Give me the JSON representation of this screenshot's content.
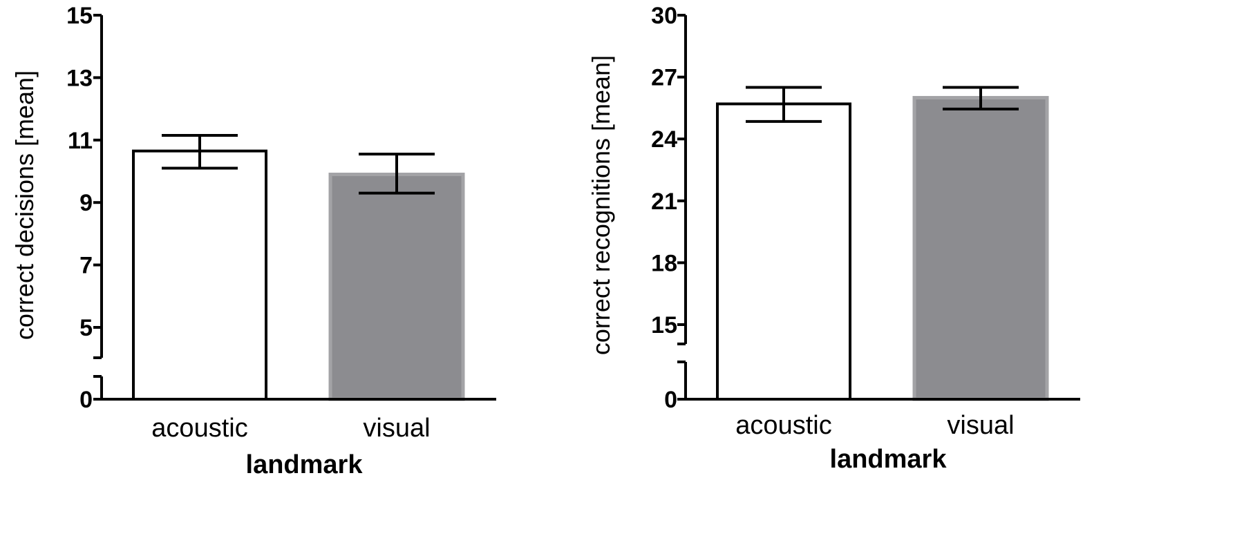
{
  "chart_data": [
    {
      "type": "bar",
      "xlabel": "landmark",
      "ylabel": "correct decisions [mean]",
      "categories": [
        "acoustic",
        "visual"
      ],
      "values": [
        10.65,
        9.9
      ],
      "error_upper": [
        11.15,
        10.55
      ],
      "error_lower": [
        10.1,
        9.3
      ],
      "bar_colors": [
        "#ffffff",
        "#8c8c90"
      ],
      "y_ticks": [
        0,
        5,
        7,
        9,
        11,
        13,
        15
      ],
      "tick_labels": [
        "0",
        "5",
        "7",
        "9",
        "11",
        "13",
        "15"
      ],
      "axis_break": true,
      "ylim": [
        0,
        15
      ],
      "grid": false
    },
    {
      "type": "bar",
      "xlabel": "landmark",
      "ylabel": "correct recognitions [mean]",
      "categories": [
        "acoustic",
        "visual"
      ],
      "values": [
        25.7,
        26.0
      ],
      "error_upper": [
        26.5,
        26.5
      ],
      "error_lower": [
        24.85,
        25.45
      ],
      "bar_colors": [
        "#ffffff",
        "#8c8c90"
      ],
      "y_ticks": [
        0,
        15,
        18,
        21,
        24,
        27,
        30
      ],
      "tick_labels": [
        "0",
        "15",
        "18",
        "21",
        "24",
        "27",
        "30"
      ],
      "axis_break": true,
      "ylim": [
        0,
        30
      ],
      "grid": false
    }
  ]
}
